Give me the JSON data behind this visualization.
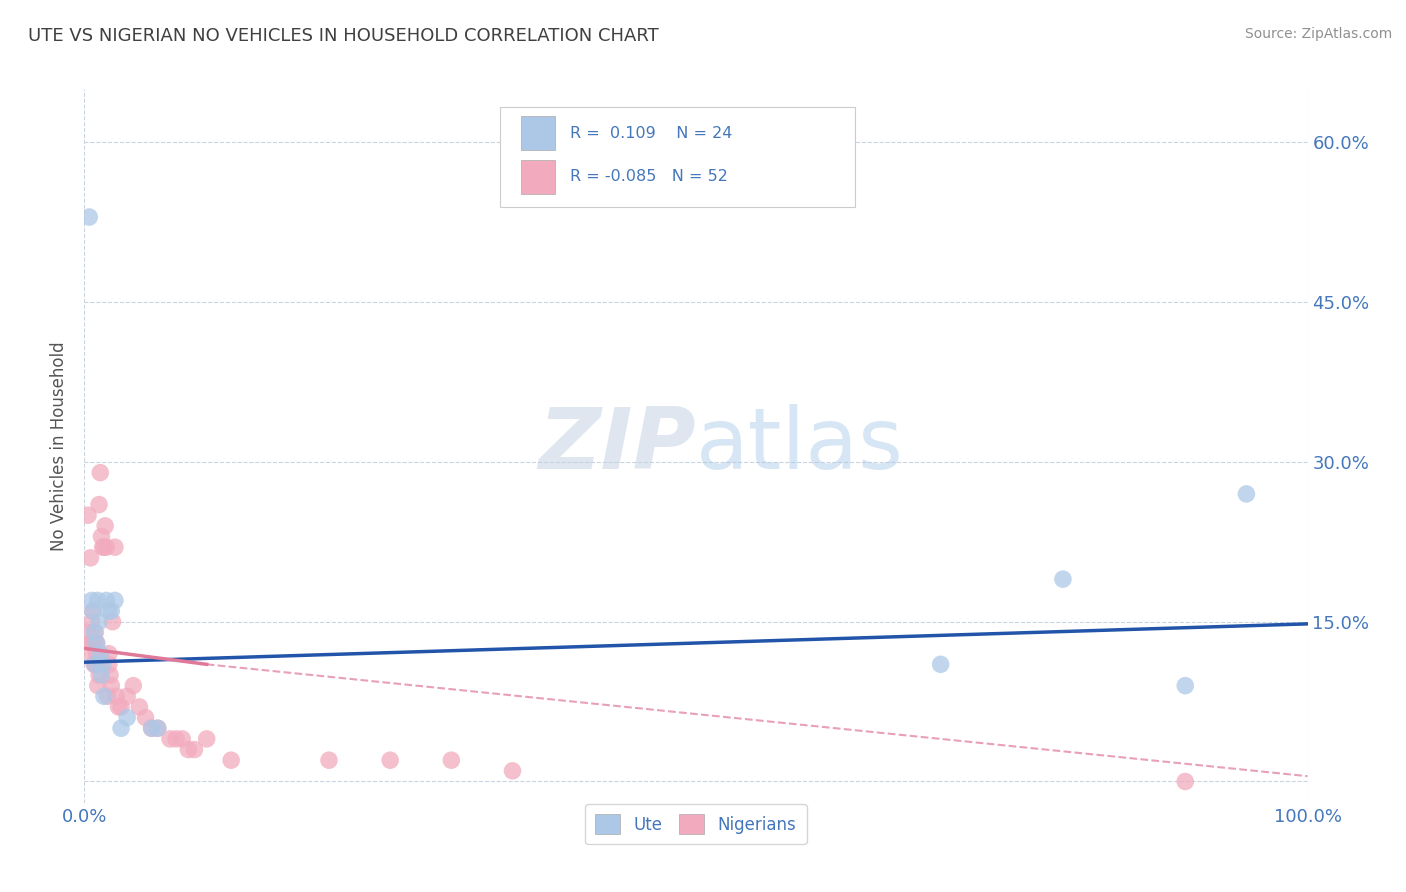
{
  "title": "UTE VS NIGERIAN NO VEHICLES IN HOUSEHOLD CORRELATION CHART",
  "source": "Source: ZipAtlas.com",
  "ylabel": "No Vehicles in Household",
  "xlim": [
    0.0,
    1.0
  ],
  "ylim": [
    -0.02,
    0.65
  ],
  "yticks": [
    0.0,
    0.15,
    0.3,
    0.45,
    0.6
  ],
  "ytick_labels": [
    "",
    "15.0%",
    "30.0%",
    "45.0%",
    "60.0%"
  ],
  "xtick_labels": [
    "0.0%",
    "100.0%"
  ],
  "legend_labels": [
    "Ute",
    "Nigerians"
  ],
  "ute_R": 0.109,
  "ute_N": 24,
  "nigerian_R": -0.085,
  "nigerian_N": 52,
  "ute_color": "#adc8e6",
  "nigerian_color": "#f2abbe",
  "ute_line_color": "#2255aa",
  "nigerian_line_color": "#e07898",
  "title_color": "#404040",
  "axis_label_color": "#4477bb",
  "watermark_color": "#ccddef",
  "background_color": "#ffffff",
  "grid_color": "#c8d4e0",
  "ute_x": [
    0.004,
    0.006,
    0.007,
    0.008,
    0.009,
    0.01,
    0.011,
    0.012,
    0.013,
    0.014,
    0.015,
    0.016,
    0.018,
    0.02,
    0.022,
    0.025,
    0.03,
    0.035,
    0.055,
    0.06,
    0.7,
    0.8,
    0.9,
    0.95
  ],
  "ute_y": [
    0.53,
    0.17,
    0.16,
    0.14,
    0.11,
    0.13,
    0.17,
    0.15,
    0.12,
    0.1,
    0.11,
    0.08,
    0.17,
    0.16,
    0.16,
    0.17,
    0.05,
    0.06,
    0.05,
    0.05,
    0.11,
    0.19,
    0.09,
    0.27
  ],
  "nigerian_x": [
    0.003,
    0.004,
    0.005,
    0.005,
    0.006,
    0.006,
    0.007,
    0.007,
    0.008,
    0.008,
    0.009,
    0.009,
    0.01,
    0.01,
    0.011,
    0.011,
    0.012,
    0.012,
    0.013,
    0.014,
    0.015,
    0.016,
    0.017,
    0.018,
    0.019,
    0.02,
    0.02,
    0.021,
    0.022,
    0.023,
    0.025,
    0.026,
    0.028,
    0.03,
    0.035,
    0.04,
    0.045,
    0.05,
    0.055,
    0.06,
    0.07,
    0.075,
    0.08,
    0.085,
    0.09,
    0.1,
    0.12,
    0.2,
    0.25,
    0.3,
    0.35,
    0.9
  ],
  "nigerian_y": [
    0.25,
    0.14,
    0.13,
    0.21,
    0.12,
    0.15,
    0.13,
    0.16,
    0.13,
    0.11,
    0.11,
    0.14,
    0.12,
    0.13,
    0.09,
    0.11,
    0.1,
    0.26,
    0.29,
    0.23,
    0.22,
    0.22,
    0.24,
    0.22,
    0.08,
    0.11,
    0.12,
    0.1,
    0.09,
    0.15,
    0.22,
    0.08,
    0.07,
    0.07,
    0.08,
    0.09,
    0.07,
    0.06,
    0.05,
    0.05,
    0.04,
    0.04,
    0.04,
    0.03,
    0.03,
    0.04,
    0.02,
    0.02,
    0.02,
    0.02,
    0.01,
    0.0
  ],
  "ute_trendline_pts": [
    [
      0.0,
      0.112
    ],
    [
      1.0,
      0.148
    ]
  ],
  "nig_trendline_solid_pts": [
    [
      0.0,
      0.125
    ],
    [
      0.1,
      0.11
    ]
  ],
  "nig_trendline_dashed_pts": [
    [
      0.1,
      0.11
    ],
    [
      1.0,
      0.005
    ]
  ]
}
